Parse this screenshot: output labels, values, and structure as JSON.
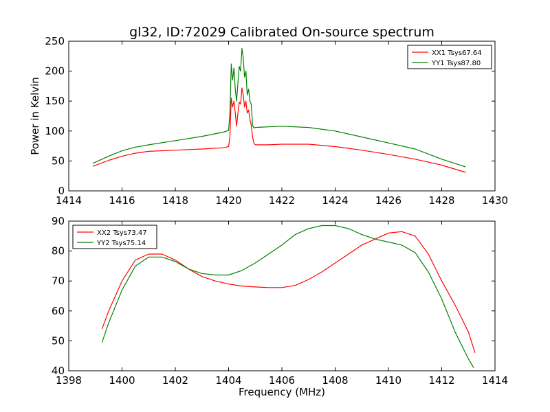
{
  "title": "gl32, ID:72029 Calibrated On-source spectrum",
  "chart_data": [
    {
      "type": "line",
      "ylabel": "Power in Kelvin",
      "xlabel": "",
      "xlim": [
        1414,
        1430
      ],
      "ylim": [
        0,
        250
      ],
      "xticks": [
        1414,
        1416,
        1418,
        1420,
        1422,
        1424,
        1426,
        1428,
        1430
      ],
      "yticks": [
        0,
        50,
        100,
        150,
        200,
        250
      ],
      "legend": "top-right",
      "series": [
        {
          "name": "XX1 Tsys67.64",
          "color": "#ff0000",
          "x": [
            1414.9,
            1415.5,
            1416,
            1416.5,
            1417,
            1418,
            1419,
            1419.8,
            1420.0,
            1420.05,
            1420.1,
            1420.15,
            1420.2,
            1420.25,
            1420.3,
            1420.35,
            1420.4,
            1420.45,
            1420.5,
            1420.55,
            1420.6,
            1420.65,
            1420.7,
            1420.75,
            1420.8,
            1420.85,
            1420.9,
            1420.95,
            1421.0,
            1421.5,
            1422,
            1423,
            1424,
            1425,
            1426,
            1427,
            1428,
            1428.9
          ],
          "y": [
            41,
            51,
            58,
            63,
            66,
            68,
            70,
            72,
            74,
            90,
            155,
            140,
            150,
            130,
            108,
            130,
            148,
            145,
            172,
            160,
            140,
            150,
            130,
            135,
            120,
            110,
            90,
            80,
            77,
            77,
            78,
            78,
            74,
            68,
            61,
            53,
            43,
            31
          ]
        },
        {
          "name": "YY1 Tsys87.80",
          "color": "#008000",
          "x": [
            1414.9,
            1415.5,
            1416,
            1416.5,
            1417,
            1418,
            1419,
            1419.8,
            1420.0,
            1420.05,
            1420.1,
            1420.15,
            1420.2,
            1420.25,
            1420.3,
            1420.35,
            1420.4,
            1420.45,
            1420.5,
            1420.55,
            1420.6,
            1420.65,
            1420.7,
            1420.75,
            1420.8,
            1420.85,
            1420.9,
            1420.95,
            1421.0,
            1421.5,
            1422,
            1423,
            1424,
            1425,
            1426,
            1427,
            1428,
            1428.9
          ],
          "y": [
            46,
            58,
            67,
            73,
            77,
            84,
            91,
            98,
            101,
            130,
            212,
            185,
            205,
            170,
            150,
            180,
            208,
            200,
            238,
            222,
            190,
            200,
            160,
            170,
            150,
            145,
            110,
            105,
            106,
            107,
            108,
            106,
            100,
            90,
            80,
            70,
            53,
            40
          ]
        }
      ]
    },
    {
      "type": "line",
      "xlabel": "Frequency (MHz)",
      "ylabel": "",
      "xlim": [
        1398,
        1414
      ],
      "ylim": [
        40,
        90
      ],
      "xticks": [
        1398,
        1400,
        1402,
        1404,
        1406,
        1408,
        1410,
        1412,
        1414
      ],
      "yticks": [
        40,
        50,
        60,
        70,
        80,
        90
      ],
      "legend": "top-left",
      "series": [
        {
          "name": "XX2 Tsys73.47",
          "color": "#ff0000",
          "x": [
            1399.25,
            1399.5,
            1400,
            1400.5,
            1401,
            1401.5,
            1402,
            1402.5,
            1403,
            1403.5,
            1404,
            1404.5,
            1405,
            1405.5,
            1406,
            1406.5,
            1407,
            1407.5,
            1408,
            1408.5,
            1409,
            1409.5,
            1410,
            1410.5,
            1411,
            1411.5,
            1412,
            1412.5,
            1413,
            1413.25
          ],
          "y": [
            54,
            60,
            70,
            77,
            79,
            79,
            77,
            74,
            71.5,
            70,
            69,
            68.3,
            68,
            67.8,
            67.8,
            68.5,
            70.5,
            73,
            76,
            79,
            82,
            84,
            86,
            86.5,
            85,
            79,
            70,
            62,
            53,
            46
          ]
        },
        {
          "name": "YY2 Tsys75.14",
          "color": "#008000",
          "x": [
            1399.25,
            1399.5,
            1400,
            1400.5,
            1401,
            1401.5,
            1402,
            1402.5,
            1403,
            1403.5,
            1404,
            1404.5,
            1405,
            1405.5,
            1406,
            1406.5,
            1407,
            1407.5,
            1408,
            1408.5,
            1409,
            1409.5,
            1410,
            1410.5,
            1411,
            1411.5,
            1412,
            1412.5,
            1413,
            1413.2
          ],
          "y": [
            49.5,
            56,
            67,
            75,
            78,
            78,
            76.5,
            74,
            72.5,
            72,
            72,
            73.5,
            76,
            79,
            82,
            85.5,
            87.5,
            88.5,
            88.5,
            87.5,
            85.5,
            84,
            83,
            82,
            79.5,
            73,
            64,
            53,
            44,
            41
          ]
        }
      ]
    }
  ]
}
